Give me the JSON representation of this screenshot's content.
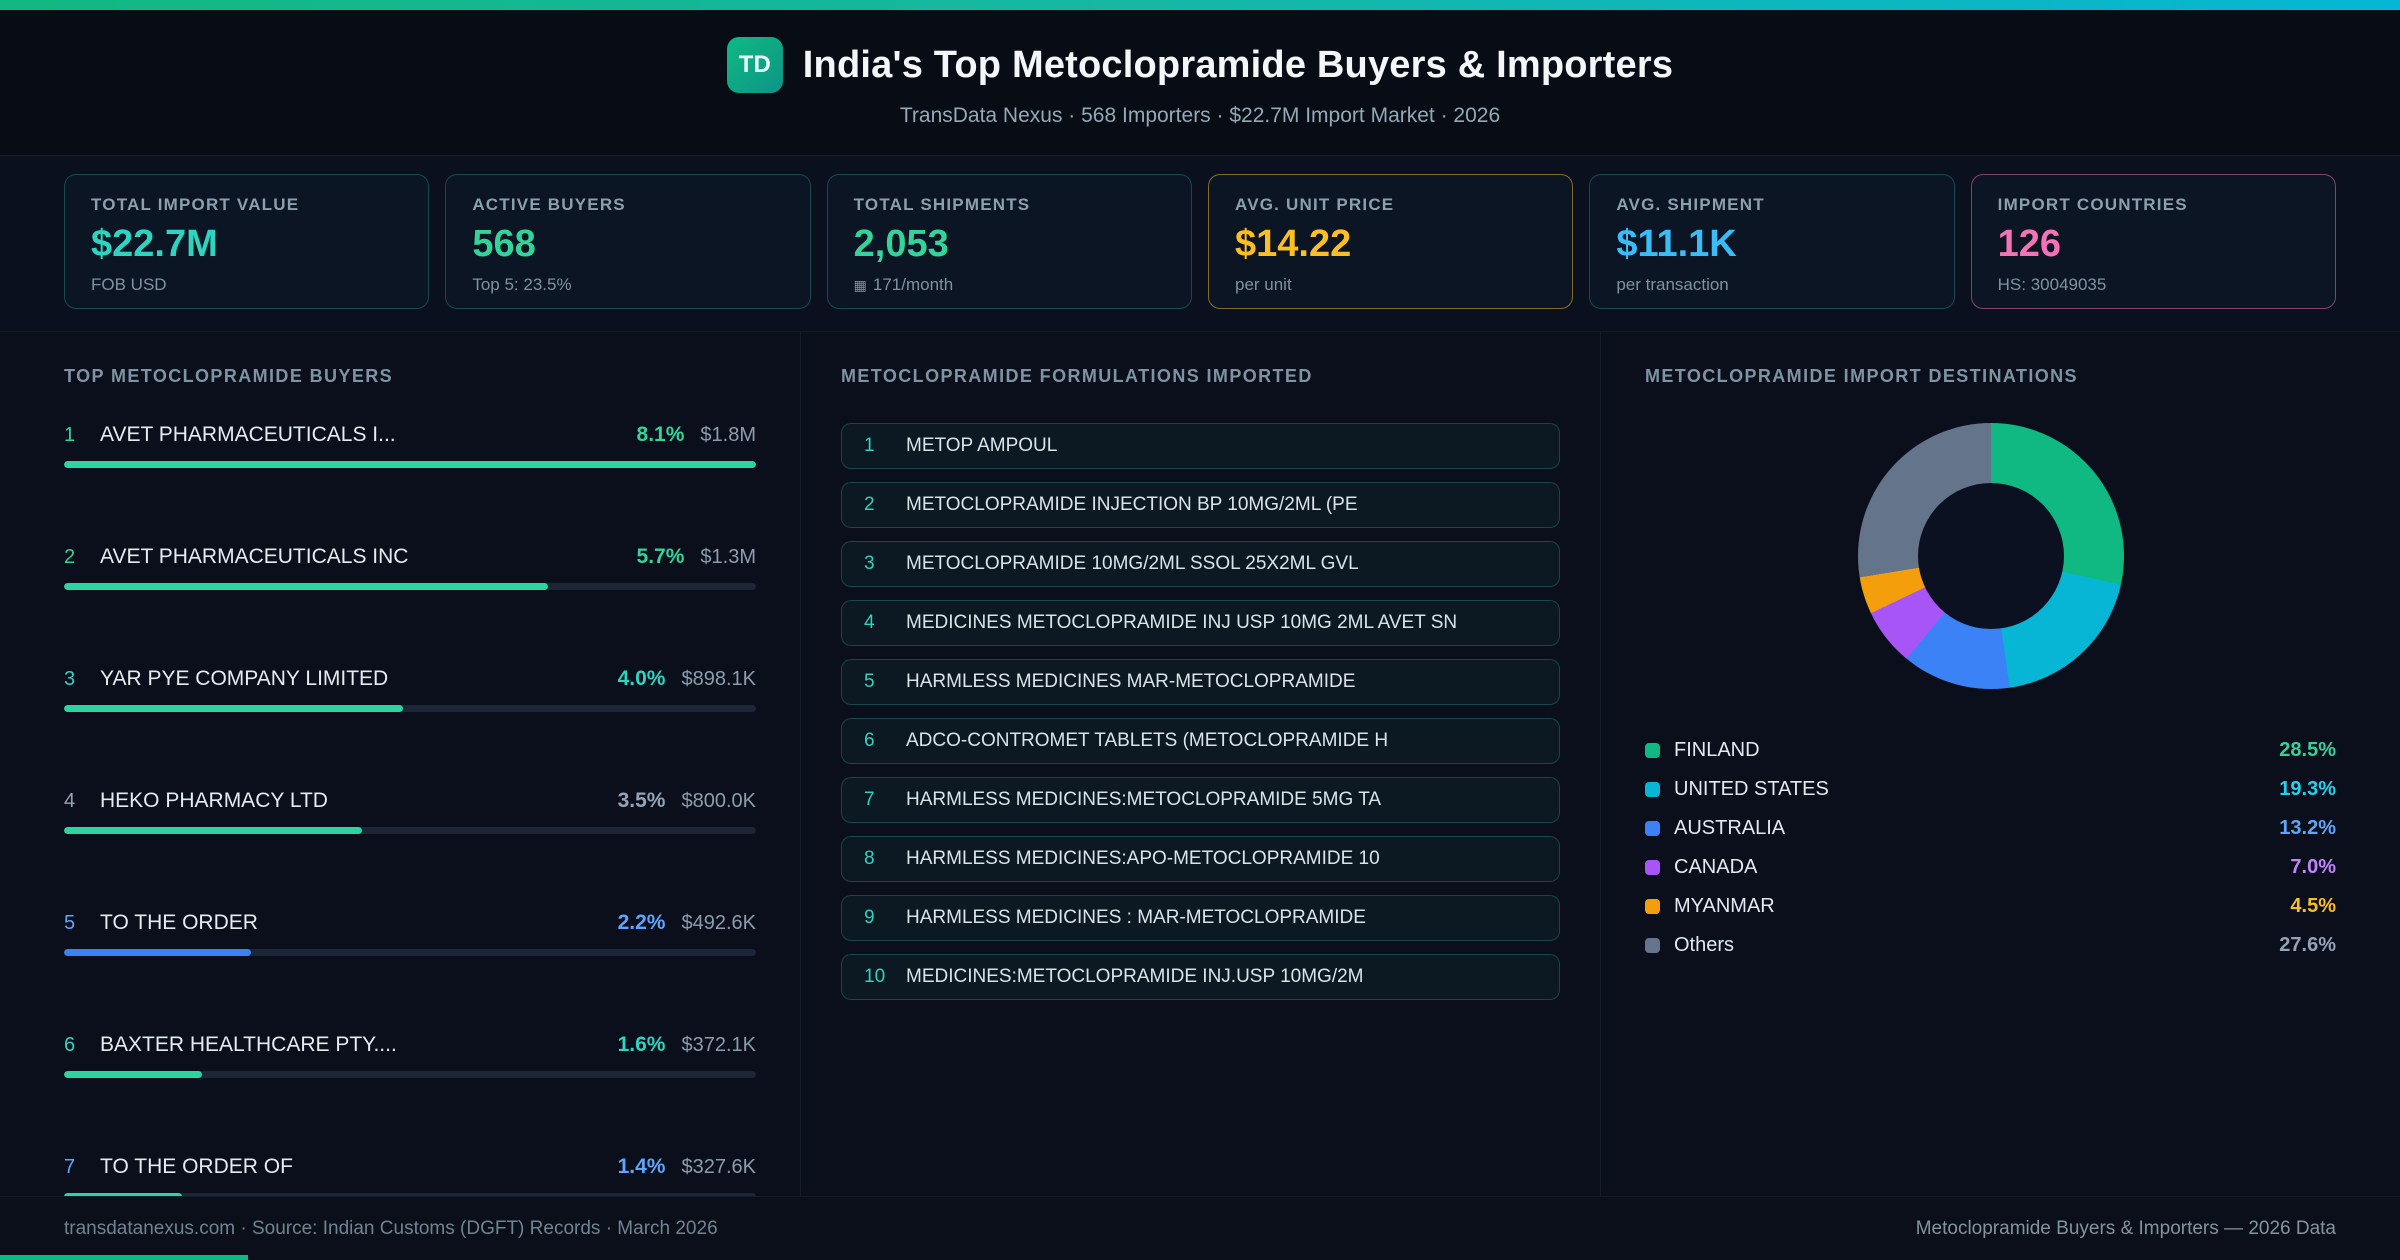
{
  "header": {
    "logo_text": "TD",
    "title": "India's Top Metoclopramide Buyers & Importers",
    "subtitle": "TransData Nexus · 568 Importers · $22.7M Import Market · 2026"
  },
  "stats": [
    {
      "label": "TOTAL IMPORT VALUE",
      "value": "$22.7M",
      "sub": "FOB USD",
      "value_color": "#2dd4bf",
      "border_color": "rgba(45,212,191,0.28)"
    },
    {
      "label": "ACTIVE BUYERS",
      "value": "568",
      "sub": "Top 5: 23.5%",
      "value_color": "#34d399",
      "border_color": "rgba(45,212,191,0.28)"
    },
    {
      "label": "TOTAL SHIPMENTS",
      "value": "2,053",
      "sub": "171/month",
      "sub_icon": "▦",
      "value_color": "#34d399",
      "border_color": "rgba(45,212,191,0.28)"
    },
    {
      "label": "AVG. UNIT PRICE",
      "value": "$14.22",
      "sub": "per unit",
      "value_color": "#fbbf24",
      "border_color": "rgba(251,191,36,0.5)"
    },
    {
      "label": "AVG. SHIPMENT",
      "value": "$11.1K",
      "sub": "per transaction",
      "value_color": "#38bdf8",
      "border_color": "rgba(45,212,191,0.28)"
    },
    {
      "label": "IMPORT COUNTRIES",
      "value": "126",
      "sub": "HS: 30049035",
      "value_color": "#f472b6",
      "border_color": "rgba(244,114,182,0.5)"
    }
  ],
  "formulations": {
    "section_title": "METOCLOPRAMIDE FORMULATIONS IMPORTED",
    "items": [
      {
        "num": "1",
        "name": "METOP AMPOUL"
      },
      {
        "num": "2",
        "name": "METOCLOPRAMIDE INJECTION BP 10MG/2ML (PE"
      },
      {
        "num": "3",
        "name": "METOCLOPRAMIDE 10MG/2ML SSOL 25X2ML GVL"
      },
      {
        "num": "4",
        "name": "MEDICINES METOCLOPRAMIDE INJ USP 10MG 2ML AVET SN"
      },
      {
        "num": "5",
        "name": "HARMLESS MEDICINES MAR-METOCLOPRAMIDE"
      },
      {
        "num": "6",
        "name": "ADCO-CONTROMET TABLETS (METOCLOPRAMIDE H"
      },
      {
        "num": "7",
        "name": "HARMLESS MEDICINES:METOCLOPRAMIDE 5MG TA"
      },
      {
        "num": "8",
        "name": "HARMLESS MEDICINES:APO-METOCLOPRAMIDE 10"
      },
      {
        "num": "9",
        "name": "HARMLESS MEDICINES : MAR-METOCLOPRAMIDE"
      },
      {
        "num": "10",
        "name": "MEDICINES:METOCLOPRAMIDE INJ.USP 10MG/2M"
      }
    ]
  },
  "chart_data": [
    {
      "type": "pie",
      "donut": true,
      "title": "METOCLOPRAMIDE IMPORT DESTINATIONS",
      "legend_position": "bottom",
      "slices": [
        {
          "label": "FINLAND",
          "value": 28.5,
          "pct_label": "28.5%",
          "color": "#10b981",
          "pct_color": "#34d399"
        },
        {
          "label": "UNITED STATES",
          "value": 19.3,
          "pct_label": "19.3%",
          "color": "#06b6d4",
          "pct_color": "#22d3ee"
        },
        {
          "label": "AUSTRALIA",
          "value": 13.2,
          "pct_label": "13.2%",
          "color": "#3b82f6",
          "pct_color": "#60a5fa"
        },
        {
          "label": "CANADA",
          "value": 7.0,
          "pct_label": "7.0%",
          "color": "#a855f7",
          "pct_color": "#c084fc"
        },
        {
          "label": "MYANMAR",
          "value": 4.5,
          "pct_label": "4.5%",
          "color": "#f59e0b",
          "pct_color": "#fbbf24"
        },
        {
          "label": "Others",
          "value": 27.6,
          "pct_label": "27.6%",
          "color": "#64748b",
          "pct_color": "#94a3b8"
        }
      ]
    },
    {
      "type": "bar",
      "orientation": "horizontal",
      "title": "TOP METOCLOPRAMIDE BUYERS",
      "value_unit": "% share of import value",
      "value_range": [
        0,
        8.1
      ],
      "bars": [
        {
          "rank": "1",
          "name": "AVET PHARMACEUTICALS I...",
          "value": 8.1,
          "value_label": "8.1%",
          "amount_label": "$1.8M",
          "width_pct": 100,
          "accent": "#34d399",
          "bar_color": "#2dd4a0"
        },
        {
          "rank": "2",
          "name": "AVET PHARMACEUTICALS INC",
          "value": 5.7,
          "value_label": "5.7%",
          "amount_label": "$1.3M",
          "width_pct": 70,
          "accent": "#34d399",
          "bar_color": "#2dd4a0"
        },
        {
          "rank": "3",
          "name": "YAR PYE COMPANY LIMITED",
          "value": 4.0,
          "value_label": "4.0%",
          "amount_label": "$898.1K",
          "width_pct": 49,
          "accent": "#2dd4bf",
          "bar_color": "#2dd4a0"
        },
        {
          "rank": "4",
          "name": "HEKO PHARMACY LTD",
          "value": 3.5,
          "value_label": "3.5%",
          "amount_label": "$800.0K",
          "width_pct": 43,
          "accent": "#94a3b8",
          "bar_color": "#2dd4a0"
        },
        {
          "rank": "5",
          "name": "TO THE ORDER",
          "value": 2.2,
          "value_label": "2.2%",
          "amount_label": "$492.6K",
          "width_pct": 27,
          "accent": "#60a5fa",
          "bar_color": "#3b82f6"
        },
        {
          "rank": "6",
          "name": "BAXTER HEALTHCARE PTY....",
          "value": 1.6,
          "value_label": "1.6%",
          "amount_label": "$372.1K",
          "width_pct": 20,
          "accent": "#2dd4bf",
          "bar_color": "#2dd4a0"
        },
        {
          "rank": "7",
          "name": "TO THE ORDER OF",
          "value": 1.4,
          "value_label": "1.4%",
          "amount_label": "$327.6K",
          "width_pct": 17,
          "accent": "#60a5fa",
          "bar_color": "#2dd4a0"
        }
      ]
    }
  ],
  "footer": {
    "left": "transdatanexus.com · Source: Indian Customs (DGFT) Records · March 2026",
    "right": "Metoclopramide Buyers & Importers — 2026 Data"
  }
}
